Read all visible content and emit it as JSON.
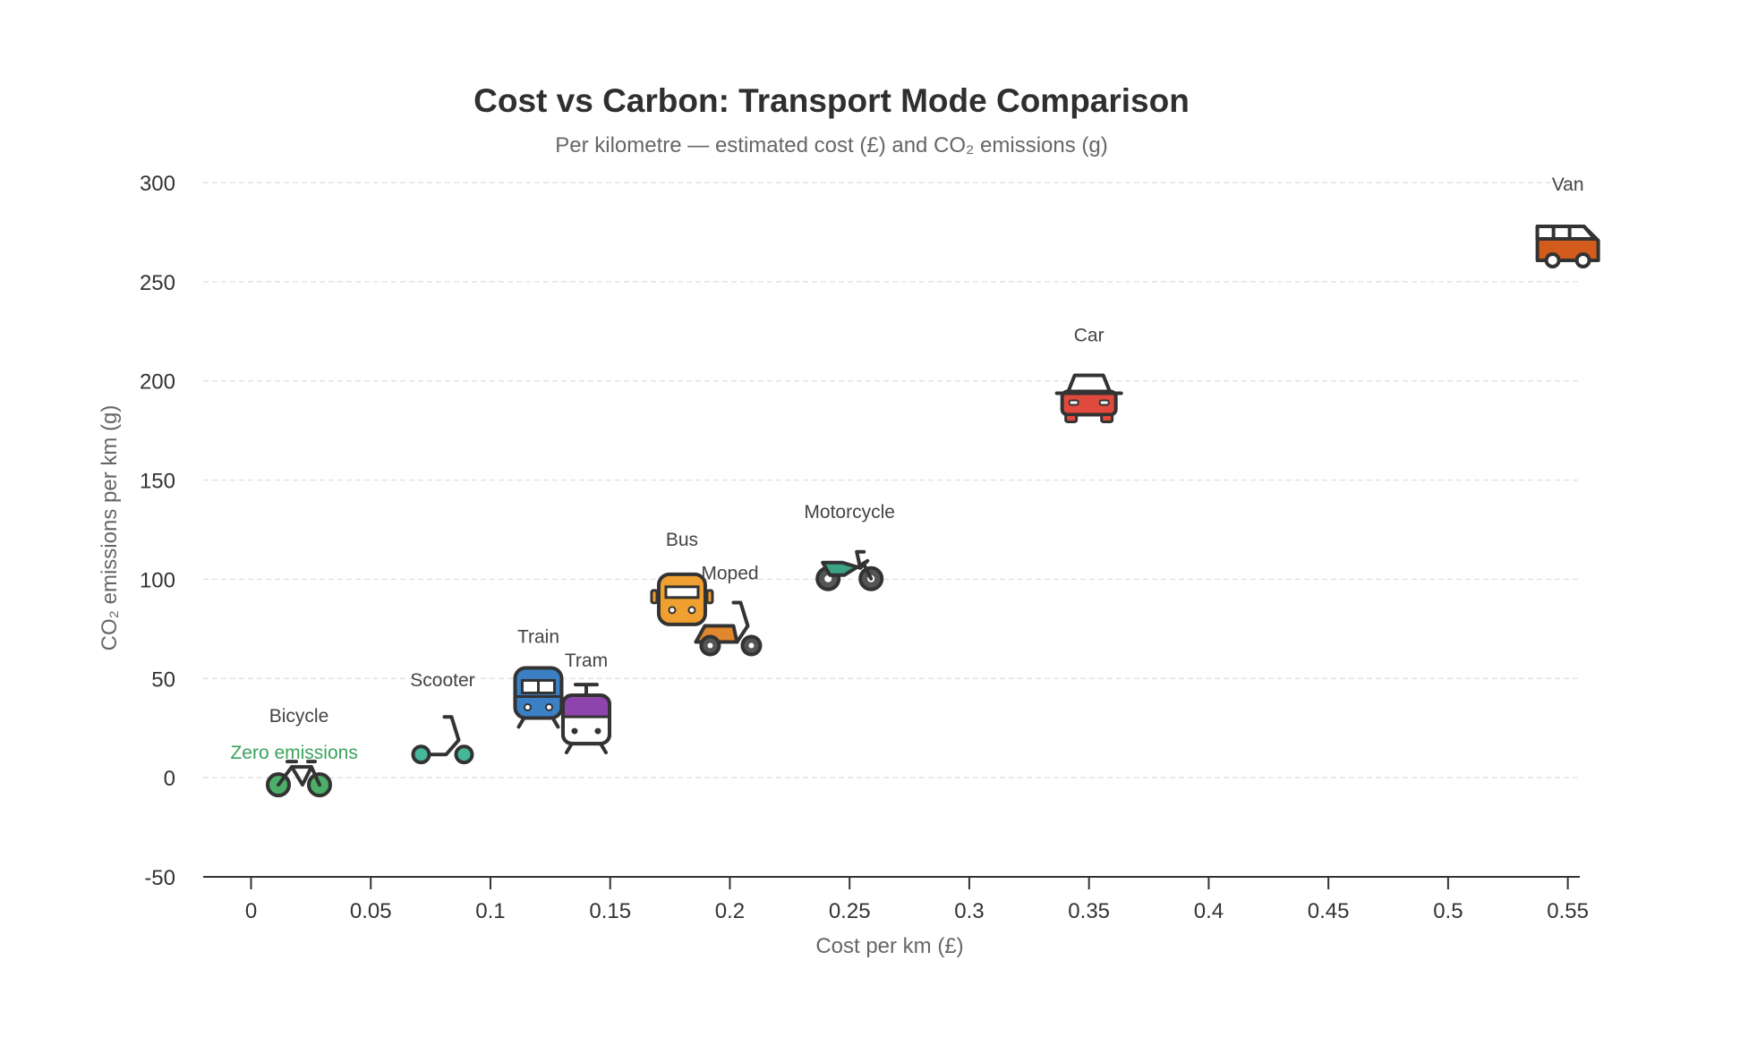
{
  "chart_data": {
    "type": "scatter",
    "title": "Cost vs Carbon: Transport Mode Comparison",
    "subtitle": "Per kilometre — estimated cost (£) and CO₂ emissions (g)",
    "xlabel": "Cost per km (£)",
    "ylabel": "CO₂ emissions per km (g)",
    "xlim": [
      -0.02,
      0.555
    ],
    "ylim": [
      -50,
      300
    ],
    "xticks": [
      0,
      0.05,
      0.1,
      0.15,
      0.2,
      0.25,
      0.3,
      0.35,
      0.4,
      0.45,
      0.5,
      0.55
    ],
    "xtick_labels": [
      "0",
      "0.05",
      "0.1",
      "0.15",
      "0.2",
      "0.25",
      "0.3",
      "0.35",
      "0.4",
      "0.45",
      "0.5",
      "0.55"
    ],
    "yticks": [
      -50,
      0,
      50,
      100,
      150,
      200,
      250,
      300
    ],
    "ytick_labels": [
      "-50",
      "0",
      "50",
      "100",
      "150",
      "200",
      "250",
      "300"
    ],
    "grid": true,
    "points": [
      {
        "label": "Bicycle",
        "x": 0.02,
        "y": 0,
        "icon": "bicycle-icon",
        "color": "#4caf68"
      },
      {
        "label": "Scooter",
        "x": 0.08,
        "y": 18,
        "icon": "scooter-icon",
        "color": "#45b89a"
      },
      {
        "label": "Train",
        "x": 0.12,
        "y": 40,
        "icon": "train-icon",
        "color": "#3b7fc4"
      },
      {
        "label": "Tram",
        "x": 0.14,
        "y": 28,
        "icon": "tram-icon",
        "color": "#8e44ad"
      },
      {
        "label": "Bus",
        "x": 0.18,
        "y": 89,
        "icon": "bus-icon",
        "color": "#f0a030"
      },
      {
        "label": "Moped",
        "x": 0.2,
        "y": 72,
        "icon": "moped-icon",
        "color": "#e0862d"
      },
      {
        "label": "Motorcycle",
        "x": 0.25,
        "y": 103,
        "icon": "motorcycle-icon",
        "color": "#3aa585"
      },
      {
        "label": "Car",
        "x": 0.35,
        "y": 192,
        "icon": "car-icon",
        "color": "#e04a3c"
      },
      {
        "label": "Van",
        "x": 0.55,
        "y": 268,
        "icon": "van-icon",
        "color": "#d35c1d"
      }
    ],
    "annotations": [
      {
        "text": "Zero emissions",
        "x": 0.018,
        "y": 6,
        "color": "#3aa35c"
      }
    ]
  }
}
